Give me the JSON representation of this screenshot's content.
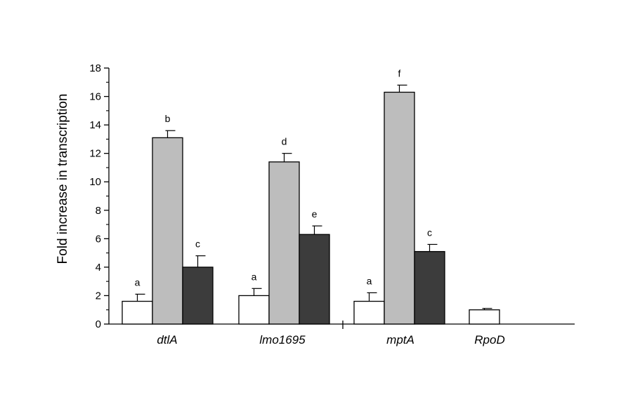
{
  "chart_data": {
    "type": "bar",
    "ylabel": "Fold increase in transcription",
    "xlabel": "",
    "ylim": [
      0,
      18
    ],
    "yticks": [
      0,
      2,
      4,
      6,
      8,
      10,
      12,
      14,
      16,
      18
    ],
    "categories": [
      "dtlA",
      "lmo1695",
      "mptA",
      "RpoD"
    ],
    "series": [
      {
        "color": "#ffffff",
        "values": [
          1.6,
          2.0,
          1.6,
          1.0
        ],
        "errors": [
          0.5,
          0.5,
          0.6,
          0.1
        ],
        "labels": [
          "a",
          "a",
          "a",
          ""
        ]
      },
      {
        "color": "#bdbdbd",
        "values": [
          13.1,
          11.4,
          16.3,
          null
        ],
        "errors": [
          0.5,
          0.6,
          0.5,
          null
        ],
        "labels": [
          "b",
          "d",
          "f",
          ""
        ]
      },
      {
        "color": "#3c3c3c",
        "values": [
          4.0,
          6.3,
          5.1,
          null
        ],
        "errors": [
          0.8,
          0.6,
          0.5,
          null
        ],
        "labels": [
          "c",
          "e",
          "c",
          ""
        ]
      }
    ]
  }
}
